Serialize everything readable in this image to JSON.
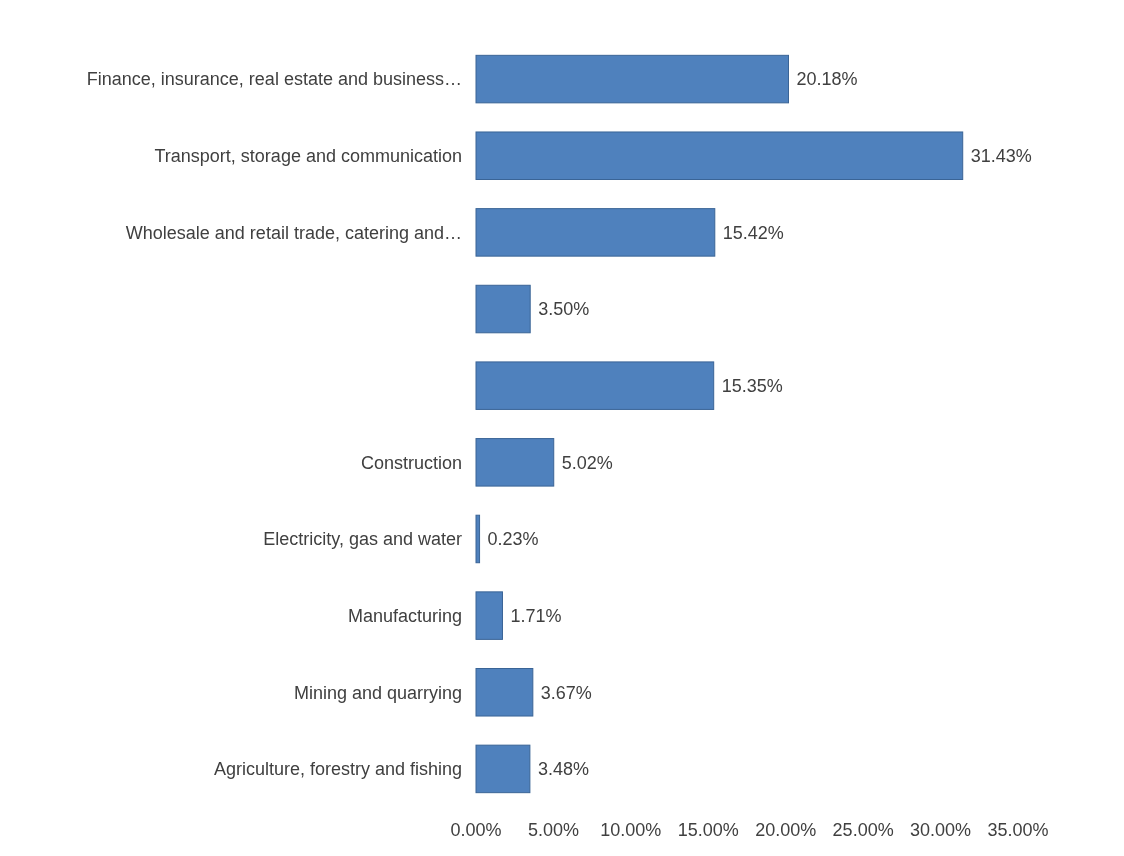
{
  "chart_data": {
    "type": "bar",
    "orientation": "horizontal",
    "categories": [
      "Finance, insurance, real estate and business…",
      "Transport, storage and communication",
      "Wholesale and retail trade, catering and…",
      null,
      null,
      "Construction",
      "Electricity, gas and water",
      "Manufacturing",
      "Mining and quarrying",
      "Agriculture, forestry and fishing"
    ],
    "values": [
      20.18,
      31.43,
      15.42,
      3.5,
      15.35,
      5.02,
      0.23,
      1.71,
      3.67,
      3.48
    ],
    "value_labels": [
      "20.18%",
      "31.43%",
      "15.42%",
      "3.50%",
      "15.35%",
      "5.02%",
      "0.23%",
      "1.71%",
      "3.67%",
      "3.48%"
    ],
    "color": "#4f81bd",
    "xlim": [
      0,
      35
    ],
    "xticks": [
      {
        "value": 0,
        "label": "0.00%"
      },
      {
        "value": 5,
        "label": "5.00%"
      },
      {
        "value": 10,
        "label": "10.00%"
      },
      {
        "value": 15,
        "label": "15.00%"
      },
      {
        "value": 20,
        "label": "20.00%"
      },
      {
        "value": 25,
        "label": "25.00%"
      },
      {
        "value": 30,
        "label": "30.00%"
      },
      {
        "value": 35,
        "label": "35.00%"
      }
    ],
    "grid": false,
    "legend": false
  }
}
